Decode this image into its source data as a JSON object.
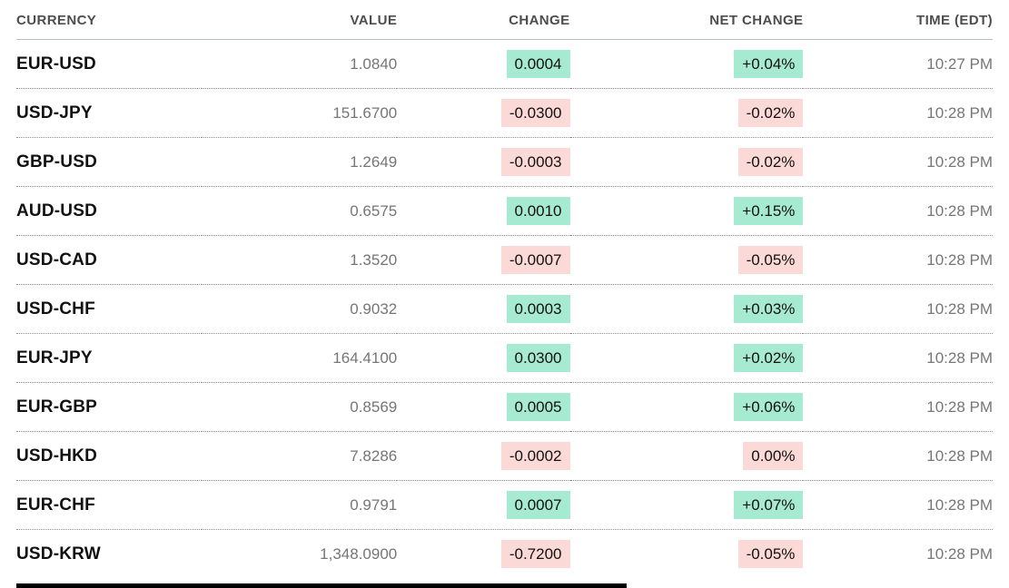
{
  "colors": {
    "positive_bg": "#a7ead2",
    "negative_bg": "#fbd9d6",
    "header_text": "#4d4d4d",
    "value_text": "#767676",
    "currency_text": "#111111"
  },
  "table": {
    "columns": [
      "CURRENCY",
      "VALUE",
      "CHANGE",
      "NET CHANGE",
      "TIME (EDT)"
    ],
    "rows": [
      {
        "currency": "EUR-USD",
        "value": "1.0840",
        "change": "0.0004",
        "net_change": "+0.04%",
        "time": "10:27 PM",
        "direction": "up"
      },
      {
        "currency": "USD-JPY",
        "value": "151.6700",
        "change": "-0.0300",
        "net_change": "-0.02%",
        "time": "10:28 PM",
        "direction": "down"
      },
      {
        "currency": "GBP-USD",
        "value": "1.2649",
        "change": "-0.0003",
        "net_change": "-0.02%",
        "time": "10:28 PM",
        "direction": "down"
      },
      {
        "currency": "AUD-USD",
        "value": "0.6575",
        "change": "0.0010",
        "net_change": "+0.15%",
        "time": "10:28 PM",
        "direction": "up"
      },
      {
        "currency": "USD-CAD",
        "value": "1.3520",
        "change": "-0.0007",
        "net_change": "-0.05%",
        "time": "10:28 PM",
        "direction": "down"
      },
      {
        "currency": "USD-CHF",
        "value": "0.9032",
        "change": "0.0003",
        "net_change": "+0.03%",
        "time": "10:28 PM",
        "direction": "up"
      },
      {
        "currency": "EUR-JPY",
        "value": "164.4100",
        "change": "0.0300",
        "net_change": "+0.02%",
        "time": "10:28 PM",
        "direction": "up"
      },
      {
        "currency": "EUR-GBP",
        "value": "0.8569",
        "change": "0.0005",
        "net_change": "+0.06%",
        "time": "10:28 PM",
        "direction": "up"
      },
      {
        "currency": "USD-HKD",
        "value": "7.8286",
        "change": "-0.0002",
        "net_change": "0.00%",
        "time": "10:28 PM",
        "direction": "down"
      },
      {
        "currency": "EUR-CHF",
        "value": "0.9791",
        "change": "0.0007",
        "net_change": "+0.07%",
        "time": "10:28 PM",
        "direction": "up"
      },
      {
        "currency": "USD-KRW",
        "value": "1,348.0900",
        "change": "-0.7200",
        "net_change": "-0.05%",
        "time": "10:28 PM",
        "direction": "down"
      }
    ]
  }
}
